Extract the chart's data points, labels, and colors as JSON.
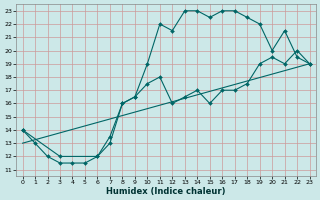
{
  "xlabel": "Humidex (Indice chaleur)",
  "bg_color": "#cce8e8",
  "grid_color": "#cc9999",
  "line_color": "#006666",
  "xlim": [
    -0.5,
    23.5
  ],
  "ylim": [
    10.5,
    23.5
  ],
  "yticks": [
    11,
    12,
    13,
    14,
    15,
    16,
    17,
    18,
    19,
    20,
    21,
    22,
    23
  ],
  "xticks": [
    0,
    1,
    2,
    3,
    4,
    5,
    6,
    7,
    8,
    9,
    10,
    11,
    12,
    13,
    14,
    15,
    16,
    17,
    18,
    19,
    20,
    21,
    22,
    23
  ],
  "series1_x": [
    0,
    1,
    2,
    3,
    4,
    5,
    6,
    7,
    8,
    9,
    10,
    11,
    12,
    13,
    14,
    15,
    16,
    17,
    18,
    19,
    20,
    21,
    22,
    23
  ],
  "series1_y": [
    14,
    13,
    12,
    11.5,
    11.5,
    11.5,
    12,
    13,
    16,
    16.5,
    19,
    22,
    21.5,
    23,
    23,
    22.5,
    23,
    23,
    22.5,
    22,
    20,
    21.5,
    19.5,
    19
  ],
  "series2_x": [
    0,
    3,
    6,
    7,
    8,
    9,
    10,
    11,
    12,
    13,
    14,
    15,
    16,
    17,
    18,
    19,
    20,
    21,
    22,
    23
  ],
  "series2_y": [
    14,
    12,
    12,
    13.5,
    16,
    16.5,
    17.5,
    18,
    16,
    16.5,
    17,
    16,
    17,
    17,
    17.5,
    19,
    19.5,
    19,
    20,
    19
  ],
  "series3_x": [
    0,
    23
  ],
  "series3_y": [
    13,
    19
  ]
}
